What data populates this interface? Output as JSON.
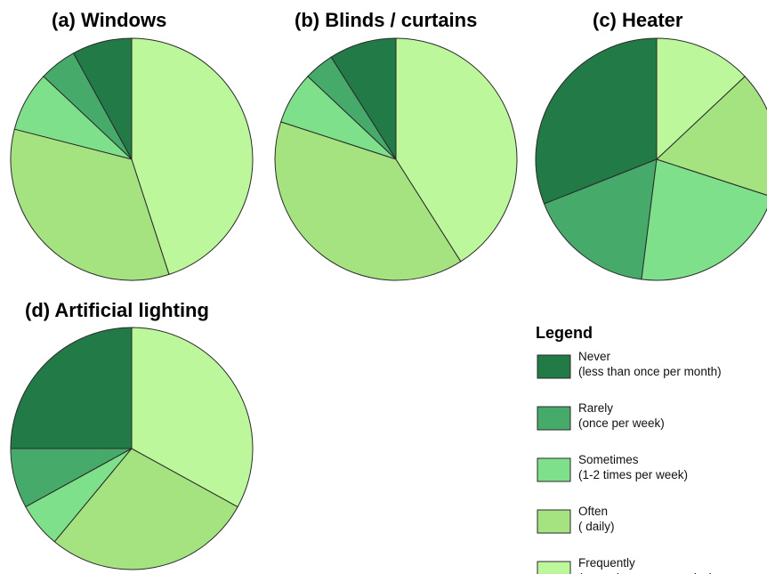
{
  "legend": {
    "title": "Legend",
    "items": [
      {
        "key": "never",
        "line1": "Never",
        "line2": "(less than once per month)",
        "color": "#227b47"
      },
      {
        "key": "rarely",
        "line1": "Rarely",
        "line2": "(once per week)",
        "color": "#46ab6a"
      },
      {
        "key": "sometimes",
        "line1": "Sometimes",
        "line2": "(1-2 times per week)",
        "color": "#7fe08b"
      },
      {
        "key": "often",
        "line1": "Often",
        "line2": "( daily)",
        "color": "#a5e381"
      },
      {
        "key": "frequently",
        "line1": "Frequently",
        "line2": "(more than once per day)",
        "color": "#bdf79c"
      }
    ]
  },
  "chart_data": [
    {
      "type": "pie",
      "title": "(a) Windows",
      "categories": [
        "Never",
        "Rarely",
        "Sometimes",
        "Often",
        "Frequently"
      ],
      "values": [
        8,
        5,
        8,
        34,
        45
      ],
      "start_angle_deg": 0,
      "direction": "counterclockwise"
    },
    {
      "type": "pie",
      "title": "(b) Blinds / curtains",
      "categories": [
        "Never",
        "Rarely",
        "Sometimes",
        "Often",
        "Frequently"
      ],
      "values": [
        9,
        4,
        7,
        39,
        41
      ],
      "start_angle_deg": 0,
      "direction": "counterclockwise"
    },
    {
      "type": "pie",
      "title": "(c) Heater",
      "categories": [
        "Never",
        "Rarely",
        "Sometimes",
        "Often",
        "Frequently"
      ],
      "values": [
        31,
        17,
        22,
        17,
        13
      ],
      "start_angle_deg": 0,
      "direction": "counterclockwise"
    },
    {
      "type": "pie",
      "title": "(d) Artificial lighting",
      "categories": [
        "Never",
        "Rarely",
        "Sometimes",
        "Often",
        "Frequently"
      ],
      "values": [
        25,
        8,
        6,
        28,
        33
      ],
      "start_angle_deg": 0,
      "direction": "counterclockwise"
    }
  ]
}
